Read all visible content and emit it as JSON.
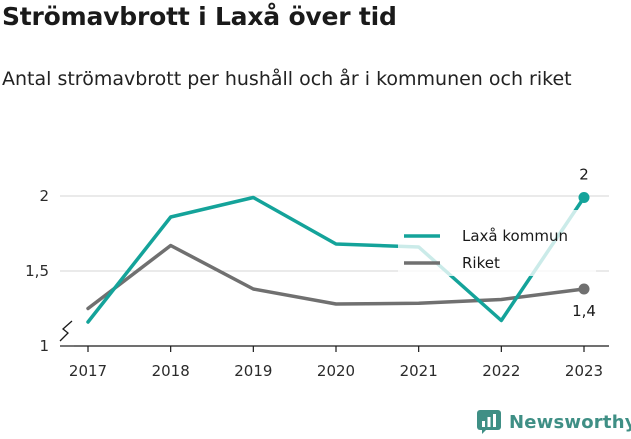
{
  "title": "Strömavbrott i Laxå över tid",
  "subtitle": "Antal strömavbrott per hushåll och år i kommunen och riket",
  "brand": {
    "name": "Newsworthy",
    "icon": "bar-chart-icon",
    "color": "#3f8f85"
  },
  "chart_data": {
    "type": "line",
    "title": "",
    "xlabel": "",
    "ylabel": "",
    "x": [
      "2017",
      "2018",
      "2019",
      "2020",
      "2021",
      "2022",
      "2023"
    ],
    "ylim": [
      1,
      2
    ],
    "y_ticks": [
      {
        "value": 1,
        "label": "1"
      },
      {
        "value": 1.5,
        "label": "1,5"
      },
      {
        "value": 2,
        "label": "2"
      }
    ],
    "axis_break": true,
    "grid": "horizontal",
    "legend_position": "right",
    "series": [
      {
        "name": "Laxå kommun",
        "color": "#14a39a",
        "values": [
          1.16,
          1.86,
          1.99,
          1.68,
          1.66,
          1.17,
          1.99
        ],
        "end_label": "2"
      },
      {
        "name": "Riket",
        "color": "#707070",
        "values": [
          1.25,
          1.67,
          1.38,
          1.28,
          1.285,
          1.31,
          1.38
        ],
        "end_label": "1,4"
      }
    ]
  }
}
